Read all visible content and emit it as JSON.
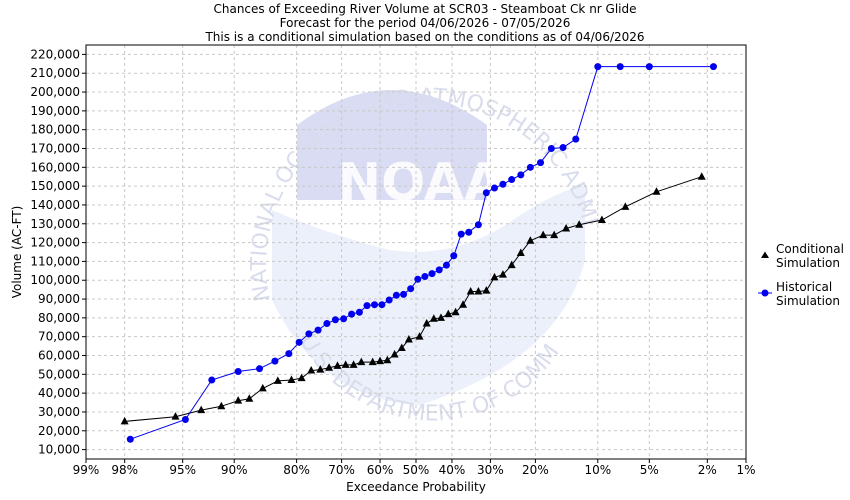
{
  "titles": {
    "line1": "Chances of Exceeding River Volume at SCR03 - Steamboat Ck nr Glide",
    "line2": "Forecast for the period 04/06/2026 - 07/05/2026",
    "line3": "This is a conditional simulation based on the conditions as of 04/06/2026"
  },
  "watermark": {
    "center_text": "NOAA",
    "top_arc": "NATIONAL OCEANIC AND ATMOSPHERIC ADMINISTRATION",
    "bottom_arc": "U.S. DEPARTMENT OF COMMERCE"
  },
  "chart_data": {
    "type": "scatter",
    "xlabel": "Exceedance Probability",
    "ylabel": "Volume (AC-FT)",
    "x_scale": "normal-probability",
    "ylim": [
      5000,
      225000
    ],
    "x_ticks": [
      "99%",
      "98%",
      "95%",
      "90%",
      "80%",
      "70%",
      "60%",
      "50%",
      "40%",
      "30%",
      "20%",
      "10%",
      "5%",
      "2%",
      "1%"
    ],
    "y_ticks": [
      "10,000",
      "20,000",
      "30,000",
      "40,000",
      "50,000",
      "60,000",
      "70,000",
      "80,000",
      "90,000",
      "100,000",
      "110,000",
      "120,000",
      "130,000",
      "140,000",
      "150,000",
      "160,000",
      "170,000",
      "180,000",
      "190,000",
      "200,000",
      "210,000",
      "220,000"
    ],
    "grid": true,
    "legend_position": "right",
    "series": [
      {
        "name": "Conditional Simulation",
        "color": "#000000",
        "marker": "triangle",
        "x": [
          98.0,
          95.5,
          93.5,
          91.5,
          89.5,
          88.0,
          86.0,
          83.5,
          81.0,
          79.0,
          77.0,
          75.0,
          73.0,
          71.0,
          69.0,
          67.0,
          65.0,
          62.0,
          60.0,
          58.0,
          56.0,
          54.0,
          52.0,
          49.0,
          47.0,
          45.0,
          43.0,
          41.0,
          39.0,
          37.0,
          35.0,
          33.0,
          31.0,
          29.0,
          27.0,
          25.0,
          23.0,
          21.0,
          18.5,
          16.5,
          14.5,
          12.5,
          9.5,
          7.0,
          4.5,
          2.2
        ],
        "y": [
          25000,
          27500,
          31000,
          33000,
          36000,
          37000,
          42500,
          46500,
          47000,
          48000,
          52000,
          52500,
          53500,
          54500,
          55000,
          55000,
          56500,
          56500,
          57000,
          57500,
          60500,
          64000,
          68500,
          70000,
          77000,
          79500,
          80000,
          82000,
          83000,
          87000,
          94000,
          94000,
          94500,
          101500,
          103000,
          108000,
          114500,
          121000,
          124000,
          124000,
          127500,
          129500,
          132000,
          139000,
          147000,
          155000
        ]
      },
      {
        "name": "Historical Simulation",
        "color": "#0000ee",
        "marker": "circle",
        "x": [
          97.8,
          94.8,
          92.5,
          89.5,
          86.5,
          84.0,
          81.5,
          79.5,
          77.5,
          75.5,
          73.5,
          71.5,
          69.5,
          67.5,
          65.5,
          63.5,
          61.5,
          59.5,
          57.5,
          55.5,
          53.5,
          51.5,
          49.5,
          47.5,
          45.5,
          43.5,
          41.5,
          39.5,
          37.5,
          35.5,
          33.0,
          31.0,
          29.0,
          27.0,
          25.0,
          23.0,
          21.0,
          19.0,
          17.0,
          15.0,
          13.0,
          10.0,
          7.5,
          5.0,
          1.8
        ],
        "y": [
          15500,
          26000,
          47000,
          51500,
          53000,
          57000,
          61000,
          67000,
          71500,
          73500,
          77000,
          79000,
          79500,
          82000,
          83000,
          86500,
          87000,
          87000,
          89500,
          92000,
          92500,
          95500,
          100500,
          102000,
          103500,
          105500,
          108000,
          113000,
          124500,
          125500,
          129500,
          146500,
          149000,
          151000,
          153500,
          156000,
          160000,
          162500,
          170000,
          170500,
          175000,
          213500,
          213500,
          213500,
          213500
        ]
      }
    ]
  }
}
